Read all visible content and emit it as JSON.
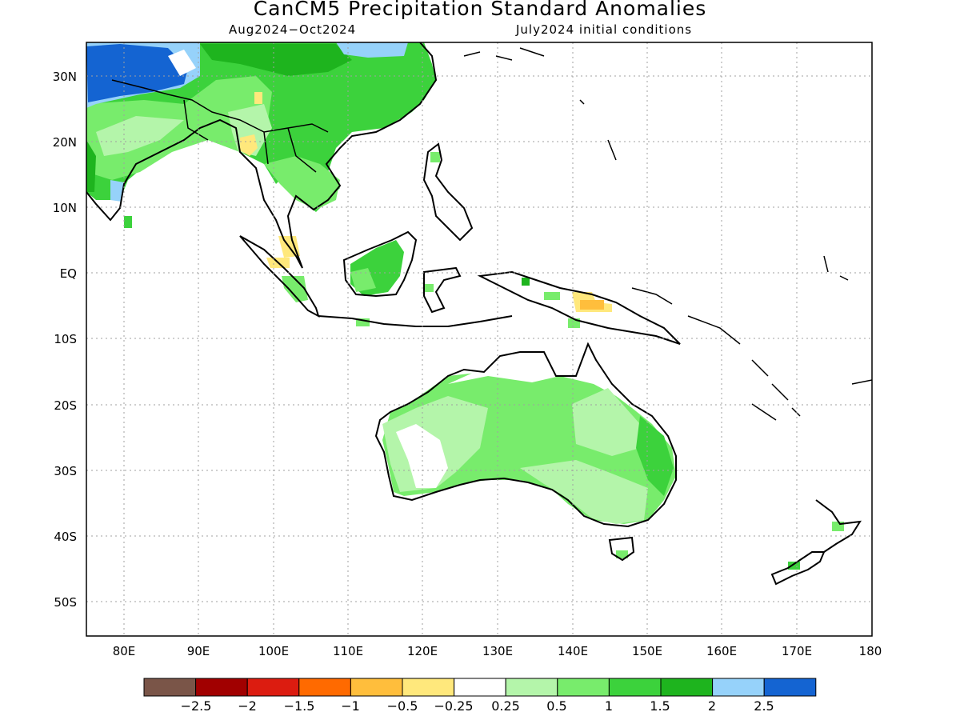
{
  "header": {
    "title": "CanCM5 Precipitation Standard Anomalies",
    "period": "Aug2024−Oct2024",
    "initial_conditions": "July2024 initial conditions"
  },
  "map": {
    "lat_labels": [
      "30N",
      "20N",
      "10N",
      "EQ",
      "10S",
      "20S",
      "30S",
      "40S",
      "50S"
    ],
    "lon_labels": [
      "80E",
      "90E",
      "100E",
      "110E",
      "120E",
      "130E",
      "140E",
      "150E",
      "160E",
      "170E",
      "180"
    ],
    "extent": {
      "lon": [
        75,
        180
      ],
      "lat": [
        -55,
        35
      ]
    },
    "grid": "dotted"
  },
  "colorbar": {
    "colors": [
      "#7a5548",
      "#a10000",
      "#dc1c10",
      "#ff6a00",
      "#ffbe3c",
      "#ffe87c",
      "#ffffff",
      "#b4f5aa",
      "#78ec6c",
      "#3cd23c",
      "#1eb41e",
      "#96d2fa",
      "#1464d2"
    ],
    "labels": [
      "−2.5",
      "−2",
      "−1.5",
      "−1",
      "−0.5",
      "−0.25",
      "0.25",
      "0.5",
      "1",
      "1.5",
      "2",
      "2.5"
    ]
  }
}
